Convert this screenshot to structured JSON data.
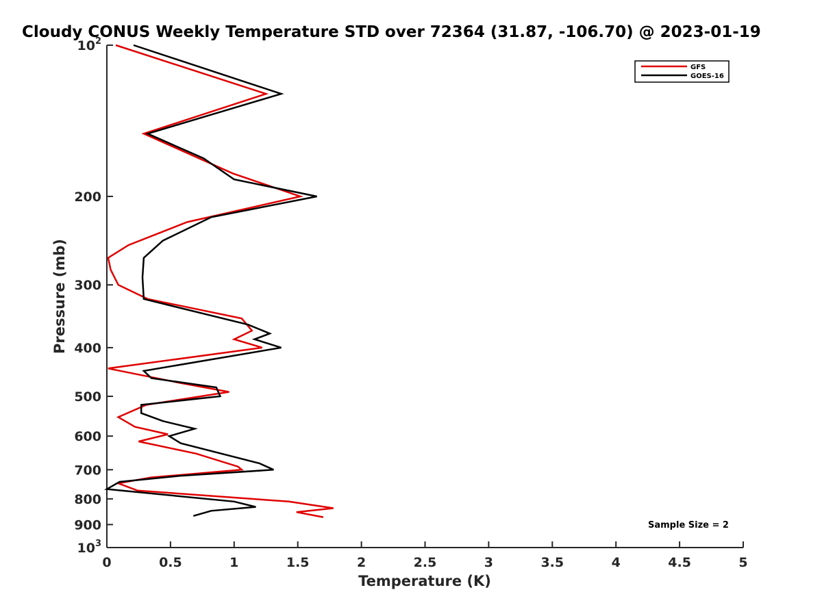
{
  "chart_data": {
    "type": "line",
    "title": "Cloudy CONUS Weekly Temperature STD over 72364 (31.87, -106.70) @ 2023-01-19",
    "xlabel": "Temperature (K)",
    "ylabel": "Pressure (mb)",
    "xlim": [
      0,
      5
    ],
    "ylim": [
      100,
      1000
    ],
    "y_scale": "log",
    "y_reversed": true,
    "grid": false,
    "legend_position": "top-right",
    "x_ticks": [
      "0",
      "0.5",
      "1",
      "1.5",
      "2",
      "2.5",
      "3",
      "3.5",
      "4",
      "4.5",
      "5"
    ],
    "x_tick_values": [
      0,
      0.5,
      1,
      1.5,
      2,
      2.5,
      3,
      3.5,
      4,
      4.5,
      5
    ],
    "y_ticks": [
      {
        "value": 100,
        "base": "10",
        "exp": "2"
      },
      {
        "value": 200,
        "base": "200",
        "exp": ""
      },
      {
        "value": 300,
        "base": "300",
        "exp": ""
      },
      {
        "value": 400,
        "base": "400",
        "exp": ""
      },
      {
        "value": 500,
        "base": "500",
        "exp": ""
      },
      {
        "value": 600,
        "base": "600",
        "exp": ""
      },
      {
        "value": 700,
        "base": "700",
        "exp": ""
      },
      {
        "value": 800,
        "base": "800",
        "exp": ""
      },
      {
        "value": 900,
        "base": "900",
        "exp": ""
      },
      {
        "value": 1000,
        "base": "10",
        "exp": "3"
      }
    ],
    "series": [
      {
        "name": "GFS",
        "color": "#e00000",
        "points": [
          [
            0.07,
            100
          ],
          [
            1.25,
            125
          ],
          [
            0.29,
            150
          ],
          [
            0.99,
            180
          ],
          [
            1.52,
            200
          ],
          [
            0.63,
            225
          ],
          [
            0.17,
            250
          ],
          [
            0.01,
            265
          ],
          [
            0.03,
            280
          ],
          [
            0.09,
            300
          ],
          [
            0.32,
            320
          ],
          [
            1.06,
            350
          ],
          [
            1.14,
            370
          ],
          [
            1.0,
            385
          ],
          [
            1.22,
            400
          ],
          [
            0.01,
            440
          ],
          [
            0.57,
            470
          ],
          [
            0.96,
            490
          ],
          [
            0.31,
            520
          ],
          [
            0.09,
            550
          ],
          [
            0.22,
            575
          ],
          [
            0.48,
            595
          ],
          [
            0.25,
            615
          ],
          [
            0.7,
            650
          ],
          [
            1.03,
            690
          ],
          [
            1.06,
            700
          ],
          [
            0.35,
            725
          ],
          [
            0.09,
            745
          ],
          [
            0.24,
            770
          ],
          [
            1.43,
            810
          ],
          [
            1.78,
            835
          ],
          [
            1.49,
            850
          ],
          [
            1.7,
            870
          ]
        ]
      },
      {
        "name": "GOES-16",
        "color": "#000000",
        "points": [
          [
            0.21,
            100
          ],
          [
            1.37,
            125
          ],
          [
            0.32,
            150
          ],
          [
            0.76,
            168
          ],
          [
            1.0,
            185
          ],
          [
            1.65,
            200
          ],
          [
            0.82,
            220
          ],
          [
            0.44,
            245
          ],
          [
            0.29,
            265
          ],
          [
            0.28,
            290
          ],
          [
            0.29,
            320
          ],
          [
            1.11,
            360
          ],
          [
            1.28,
            375
          ],
          [
            1.16,
            385
          ],
          [
            1.37,
            400
          ],
          [
            0.29,
            445
          ],
          [
            0.35,
            460
          ],
          [
            0.86,
            480
          ],
          [
            0.89,
            500
          ],
          [
            0.27,
            520
          ],
          [
            0.27,
            540
          ],
          [
            0.44,
            560
          ],
          [
            0.69,
            580
          ],
          [
            0.49,
            600
          ],
          [
            0.58,
            620
          ],
          [
            1.2,
            680
          ],
          [
            1.31,
            700
          ],
          [
            0.57,
            720
          ],
          [
            0.1,
            740
          ],
          [
            0.0,
            765
          ],
          [
            1.0,
            810
          ],
          [
            1.17,
            830
          ],
          [
            0.82,
            845
          ],
          [
            0.68,
            865
          ]
        ]
      }
    ],
    "annotation": "Sample Size = 2"
  }
}
